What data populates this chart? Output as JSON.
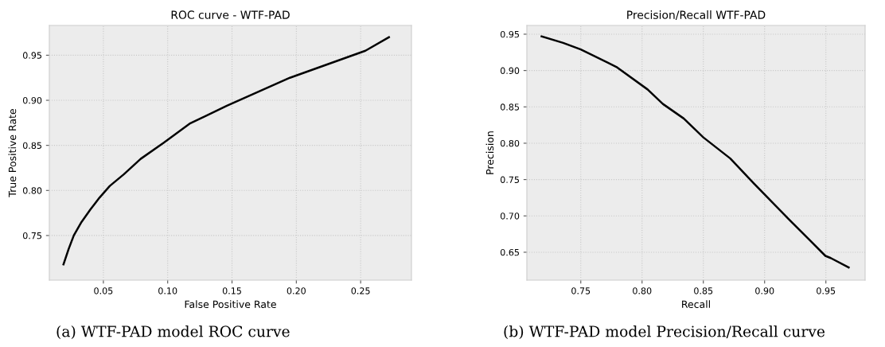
{
  "chart_data": [
    {
      "type": "line",
      "title": "ROC curve - WTF-PAD",
      "xlabel": "False Positive Rate",
      "ylabel": "True Positive Rate",
      "grid": true,
      "marker": "none",
      "line_style": "solid",
      "annotations": [
        "(a) WTF-PAD model ROC curve"
      ],
      "x": [
        0.019,
        0.023,
        0.027,
        0.033,
        0.04,
        0.047,
        0.055,
        0.066,
        0.079,
        0.097,
        0.117,
        0.146,
        0.195,
        0.2537,
        0.272
      ],
      "series": [
        {
          "color": "#000000",
          "values": [
            0.718,
            0.735,
            0.75,
            0.765,
            0.779,
            0.792,
            0.805,
            0.818,
            0.835,
            0.853,
            0.874,
            0.894,
            0.925,
            0.955,
            0.97
          ]
        }
      ],
      "xlim": [
        0.008,
        0.2895
      ],
      "ylim": [
        0.7005,
        0.983
      ],
      "xticks": [
        0.05,
        {
          "value": 0.1,
          "label": "0.10"
        },
        0.15,
        {
          "value": 0.2,
          "label": "0.20"
        },
        0.25
      ],
      "yticks": [
        0.75,
        {
          "value": 0.8,
          "label": "0.80"
        },
        0.85,
        {
          "value": 0.9,
          "label": "0.90"
        },
        0.95
      ]
    },
    {
      "type": "line",
      "title": "Precision/Recall WTF-PAD",
      "xlabel": "Recall",
      "ylabel": "Precision",
      "grid": true,
      "marker": "none",
      "line_style": "solid",
      "annotations": [
        "(b) WTF-PAD model Precision/Recall curve"
      ],
      "x": [
        0.718,
        0.7356,
        0.75,
        0.779,
        0.8045,
        0.817,
        0.834,
        0.85,
        0.872,
        0.891,
        0.92,
        0.9496,
        0.954,
        0.9686
      ],
      "series": [
        {
          "color": "#000000",
          "values": [
            0.947,
            0.938,
            0.929,
            0.905,
            0.874,
            0.854,
            0.834,
            0.808,
            0.779,
            0.745,
            0.695,
            0.645,
            0.642,
            0.629
          ]
        }
      ],
      "xlim": [
        0.706,
        0.982
      ],
      "ylim": [
        0.6116,
        0.962
      ],
      "xticks": [
        0.75,
        {
          "value": 0.8,
          "label": "0.80"
        },
        0.85,
        {
          "value": 0.9,
          "label": "0.90"
        },
        0.95
      ],
      "yticks": [
        0.65,
        {
          "value": 0.7,
          "label": "0.70"
        },
        0.75,
        {
          "value": 0.8,
          "label": "0.80"
        },
        0.85,
        {
          "value": 0.9,
          "label": "0.90"
        },
        0.95
      ]
    }
  ]
}
